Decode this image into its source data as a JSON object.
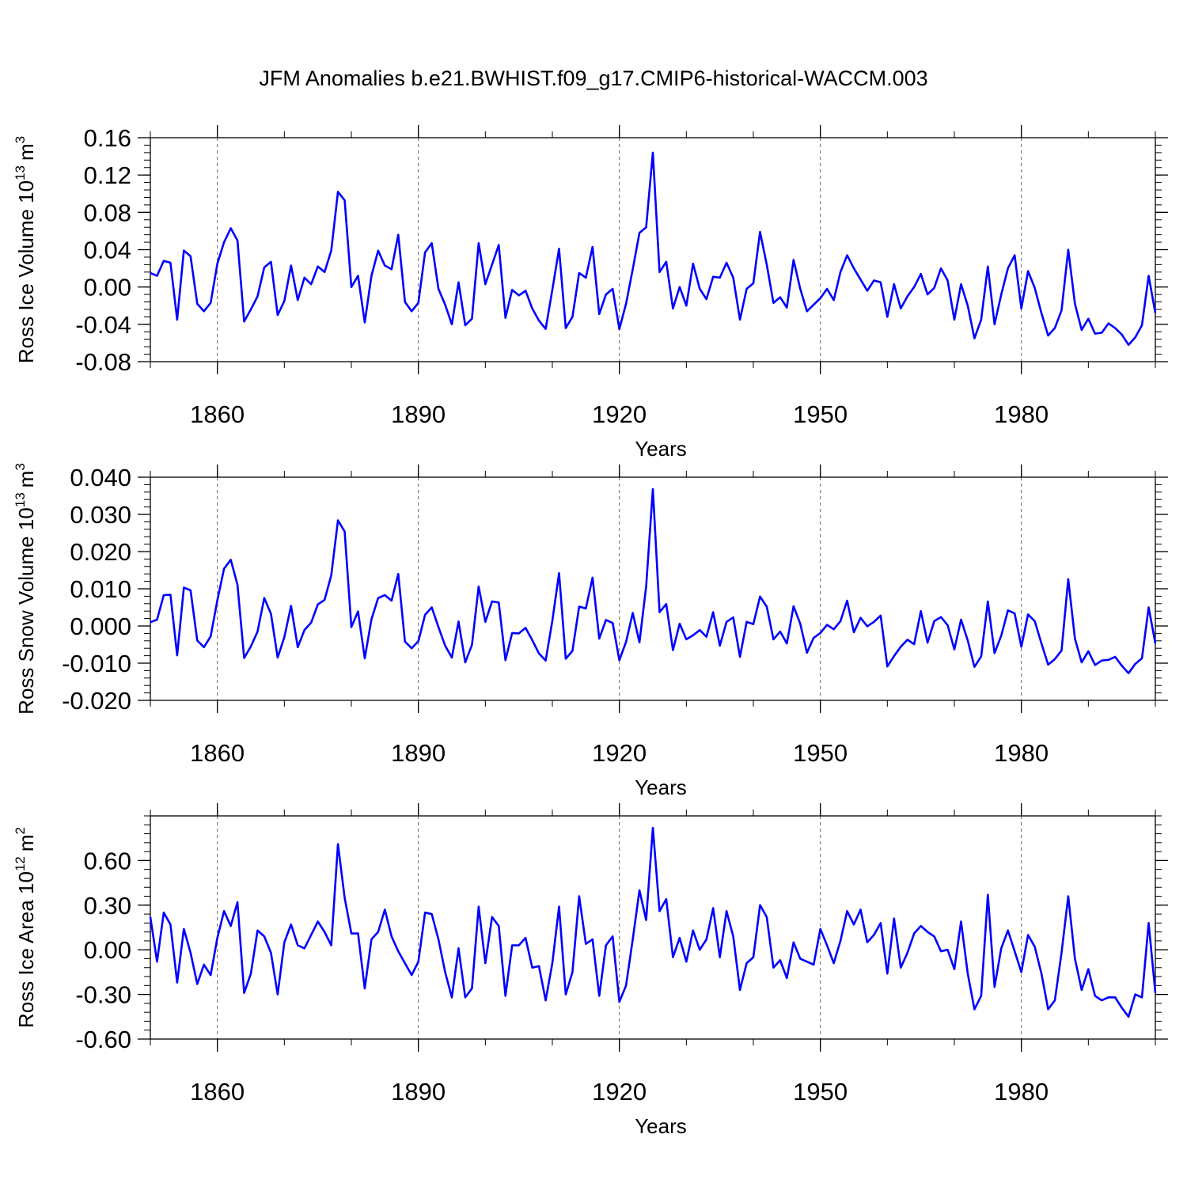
{
  "title": "JFM Anomalies b.e21.BWHIST.f09_g17.CMIP6-historical-WACCM.003",
  "line_color": "#0000ff",
  "chart_data": [
    {
      "type": "line",
      "name": "ice-volume",
      "ylabel_main": "Ross Ice Volume 10",
      "ylabel_sup": "13",
      "ylabel_unit": "m",
      "ylabel_unit_sup": "3",
      "xlabel": "Years",
      "xlim": [
        1850,
        2000
      ],
      "ylim": [
        -0.08,
        0.16
      ],
      "yticks": [
        "-0.08",
        "-0.04",
        "0.00",
        "0.04",
        "0.08",
        "0.12",
        "0.16"
      ],
      "ytick_values": [
        -0.08,
        -0.04,
        0.0,
        0.04,
        0.08,
        0.12,
        0.16
      ],
      "xticks": [
        "1860",
        "1890",
        "1920",
        "1950",
        "1980"
      ],
      "xtick_values": [
        1860,
        1890,
        1920,
        1950,
        1980
      ],
      "values": [
        0.015,
        0.012,
        0.028,
        0.026,
        -0.035,
        0.039,
        0.033,
        -0.018,
        -0.026,
        -0.017,
        0.025,
        0.048,
        0.063,
        0.05,
        -0.037,
        -0.024,
        -0.01,
        0.021,
        0.027,
        -0.03,
        -0.015,
        0.023,
        -0.014,
        0.01,
        0.003,
        0.022,
        0.016,
        0.039,
        0.102,
        0.093,
        0.0,
        0.012,
        -0.038,
        0.012,
        0.039,
        0.023,
        0.019,
        0.056,
        -0.016,
        -0.026,
        -0.017,
        0.037,
        0.047,
        -0.002,
        -0.019,
        -0.04,
        0.005,
        -0.041,
        -0.034,
        0.047,
        0.003,
        0.024,
        0.045,
        -0.033,
        -0.003,
        -0.009,
        -0.004,
        -0.023,
        -0.036,
        -0.045,
        -0.003,
        0.041,
        -0.044,
        -0.032,
        0.015,
        0.01,
        0.043,
        -0.029,
        -0.008,
        -0.002,
        -0.045,
        -0.018,
        0.019,
        0.058,
        0.064,
        0.144,
        0.016,
        0.027,
        -0.023,
        0.0,
        -0.02,
        0.025,
        -0.002,
        -0.013,
        0.011,
        0.01,
        0.026,
        0.01,
        -0.035,
        -0.002,
        0.004,
        0.059,
        0.024,
        -0.017,
        -0.011,
        -0.022,
        0.029,
        -0.002,
        -0.026,
        -0.019,
        -0.012,
        -0.002,
        -0.014,
        0.016,
        0.034,
        0.02,
        0.008,
        -0.004,
        0.007,
        0.005,
        -0.032,
        0.003,
        -0.023,
        -0.01,
        0.0,
        0.014,
        -0.008,
        -0.001,
        0.02,
        0.007,
        -0.035,
        0.003,
        -0.02,
        -0.055,
        -0.035,
        0.022,
        -0.04,
        -0.008,
        0.02,
        0.034,
        -0.023,
        0.017,
        -0.001,
        -0.028,
        -0.052,
        -0.044,
        -0.025,
        0.04,
        -0.018,
        -0.046,
        -0.034,
        -0.05,
        -0.049,
        -0.039,
        -0.044,
        -0.051,
        -0.062,
        -0.054,
        -0.041,
        0.012,
        -0.028
      ]
    },
    {
      "type": "line",
      "name": "snow-volume",
      "ylabel_main": "Ross Snow Volume 10",
      "ylabel_sup": "13",
      "ylabel_unit": "m",
      "ylabel_unit_sup": "3",
      "xlabel": "Years",
      "xlim": [
        1850,
        2000
      ],
      "ylim": [
        -0.02,
        0.04
      ],
      "yticks": [
        "-0.020",
        "-0.010",
        "0.000",
        "0.010",
        "0.020",
        "0.030",
        "0.040"
      ],
      "ytick_values": [
        -0.02,
        -0.01,
        0.0,
        0.01,
        0.02,
        0.03,
        0.04
      ],
      "xticks": [
        "1860",
        "1890",
        "1920",
        "1950",
        "1980"
      ],
      "xtick_values": [
        1860,
        1890,
        1920,
        1950,
        1980
      ],
      "values": [
        0.001,
        0.0017,
        0.0083,
        0.0084,
        -0.0079,
        0.0103,
        0.0096,
        -0.0039,
        -0.0057,
        -0.0028,
        0.0069,
        0.0154,
        0.0178,
        0.0111,
        -0.0086,
        -0.0055,
        -0.0015,
        0.0075,
        0.0033,
        -0.0085,
        -0.003,
        0.0054,
        -0.0057,
        -0.0011,
        0.0009,
        0.0058,
        0.007,
        0.0136,
        0.0284,
        0.0254,
        -0.0003,
        0.0039,
        -0.0087,
        0.0018,
        0.0075,
        0.0083,
        0.0068,
        0.014,
        -0.0042,
        -0.006,
        -0.0041,
        0.003,
        0.005,
        -0.0003,
        -0.0053,
        -0.0085,
        0.0012,
        -0.0098,
        -0.0051,
        0.0106,
        0.0011,
        0.0066,
        0.0063,
        -0.0092,
        -0.0019,
        -0.002,
        -0.0005,
        -0.0038,
        -0.0074,
        -0.0093,
        0.0014,
        0.0142,
        -0.0088,
        -0.0067,
        0.0052,
        0.0047,
        0.013,
        -0.0034,
        0.0016,
        0.0008,
        -0.0092,
        -0.0043,
        0.0035,
        -0.0044,
        0.0106,
        0.0368,
        0.0037,
        0.0059,
        -0.0065,
        0.0006,
        -0.0036,
        -0.0025,
        -0.0011,
        -0.0029,
        0.0037,
        -0.0053,
        0.0011,
        0.0023,
        -0.0083,
        0.0011,
        0.0005,
        0.0079,
        0.0052,
        -0.0036,
        -0.0015,
        -0.0047,
        0.0053,
        0.0006,
        -0.0072,
        -0.0032,
        -0.0019,
        0.0003,
        -0.0009,
        0.0013,
        0.0068,
        -0.0017,
        0.0022,
        -0.0001,
        0.0011,
        0.0028,
        -0.0109,
        -0.0081,
        -0.0056,
        -0.0037,
        -0.0049,
        0.004,
        -0.0045,
        0.0013,
        0.0024,
        0.0002,
        -0.0063,
        0.0017,
        -0.0039,
        -0.011,
        -0.0082,
        0.0066,
        -0.0073,
        -0.0026,
        0.0042,
        0.0034,
        -0.0056,
        0.0031,
        0.0013,
        -0.0047,
        -0.0104,
        -0.0089,
        -0.0066,
        0.0126,
        -0.0034,
        -0.0098,
        -0.0068,
        -0.0105,
        -0.0093,
        -0.0091,
        -0.0083,
        -0.0107,
        -0.0127,
        -0.0102,
        -0.0087,
        0.005,
        -0.0047
      ]
    },
    {
      "type": "line",
      "name": "ice-area",
      "ylabel_main": "Ross Ice Area 10",
      "ylabel_sup": "12",
      "ylabel_unit": "m",
      "ylabel_unit_sup": "2",
      "xlabel": "Years",
      "xlim": [
        1850,
        2000
      ],
      "ylim": [
        -0.6,
        0.9
      ],
      "yticks": [
        "-0.60",
        "-0.30",
        "0.00",
        "0.30",
        "0.60"
      ],
      "ytick_values": [
        -0.6,
        -0.3,
        0.0,
        0.3,
        0.6
      ],
      "xticks": [
        "1860",
        "1890",
        "1920",
        "1950",
        "1980"
      ],
      "xtick_values": [
        1860,
        1890,
        1920,
        1950,
        1980
      ],
      "values": [
        0.22,
        -0.08,
        0.25,
        0.17,
        -0.22,
        0.14,
        -0.02,
        -0.23,
        -0.1,
        -0.17,
        0.08,
        0.26,
        0.16,
        0.32,
        -0.29,
        -0.16,
        0.13,
        0.09,
        -0.02,
        -0.3,
        0.05,
        0.17,
        0.03,
        0.01,
        0.1,
        0.19,
        0.12,
        0.03,
        0.71,
        0.35,
        0.11,
        0.11,
        -0.26,
        0.07,
        0.12,
        0.27,
        0.09,
        -0.01,
        -0.09,
        -0.17,
        -0.08,
        0.25,
        0.24,
        0.07,
        -0.15,
        -0.32,
        0.01,
        -0.32,
        -0.26,
        0.29,
        -0.09,
        0.22,
        0.16,
        -0.31,
        0.03,
        0.03,
        0.08,
        -0.12,
        -0.11,
        -0.34,
        -0.09,
        0.29,
        -0.3,
        -0.15,
        0.36,
        0.04,
        0.07,
        -0.31,
        0.03,
        0.09,
        -0.35,
        -0.24,
        0.07,
        0.4,
        0.2,
        0.82,
        0.26,
        0.34,
        -0.05,
        0.08,
        -0.08,
        0.13,
        0.0,
        0.07,
        0.28,
        -0.05,
        0.26,
        0.09,
        -0.27,
        -0.09,
        -0.05,
        0.3,
        0.22,
        -0.12,
        -0.07,
        -0.19,
        0.05,
        -0.06,
        -0.08,
        -0.1,
        0.14,
        0.03,
        -0.09,
        0.06,
        0.26,
        0.17,
        0.27,
        0.05,
        0.1,
        0.18,
        -0.16,
        0.21,
        -0.12,
        -0.02,
        0.11,
        0.16,
        0.12,
        0.09,
        -0.01,
        0.0,
        -0.13,
        0.19,
        -0.16,
        -0.4,
        -0.31,
        0.37,
        -0.25,
        0.01,
        0.13,
        -0.01,
        -0.15,
        0.1,
        0.02,
        -0.16,
        -0.4,
        -0.34,
        -0.02,
        0.36,
        -0.06,
        -0.27,
        -0.13,
        -0.31,
        -0.34,
        -0.32,
        -0.32,
        -0.39,
        -0.45,
        -0.3,
        -0.32,
        0.18,
        -0.29
      ]
    }
  ]
}
